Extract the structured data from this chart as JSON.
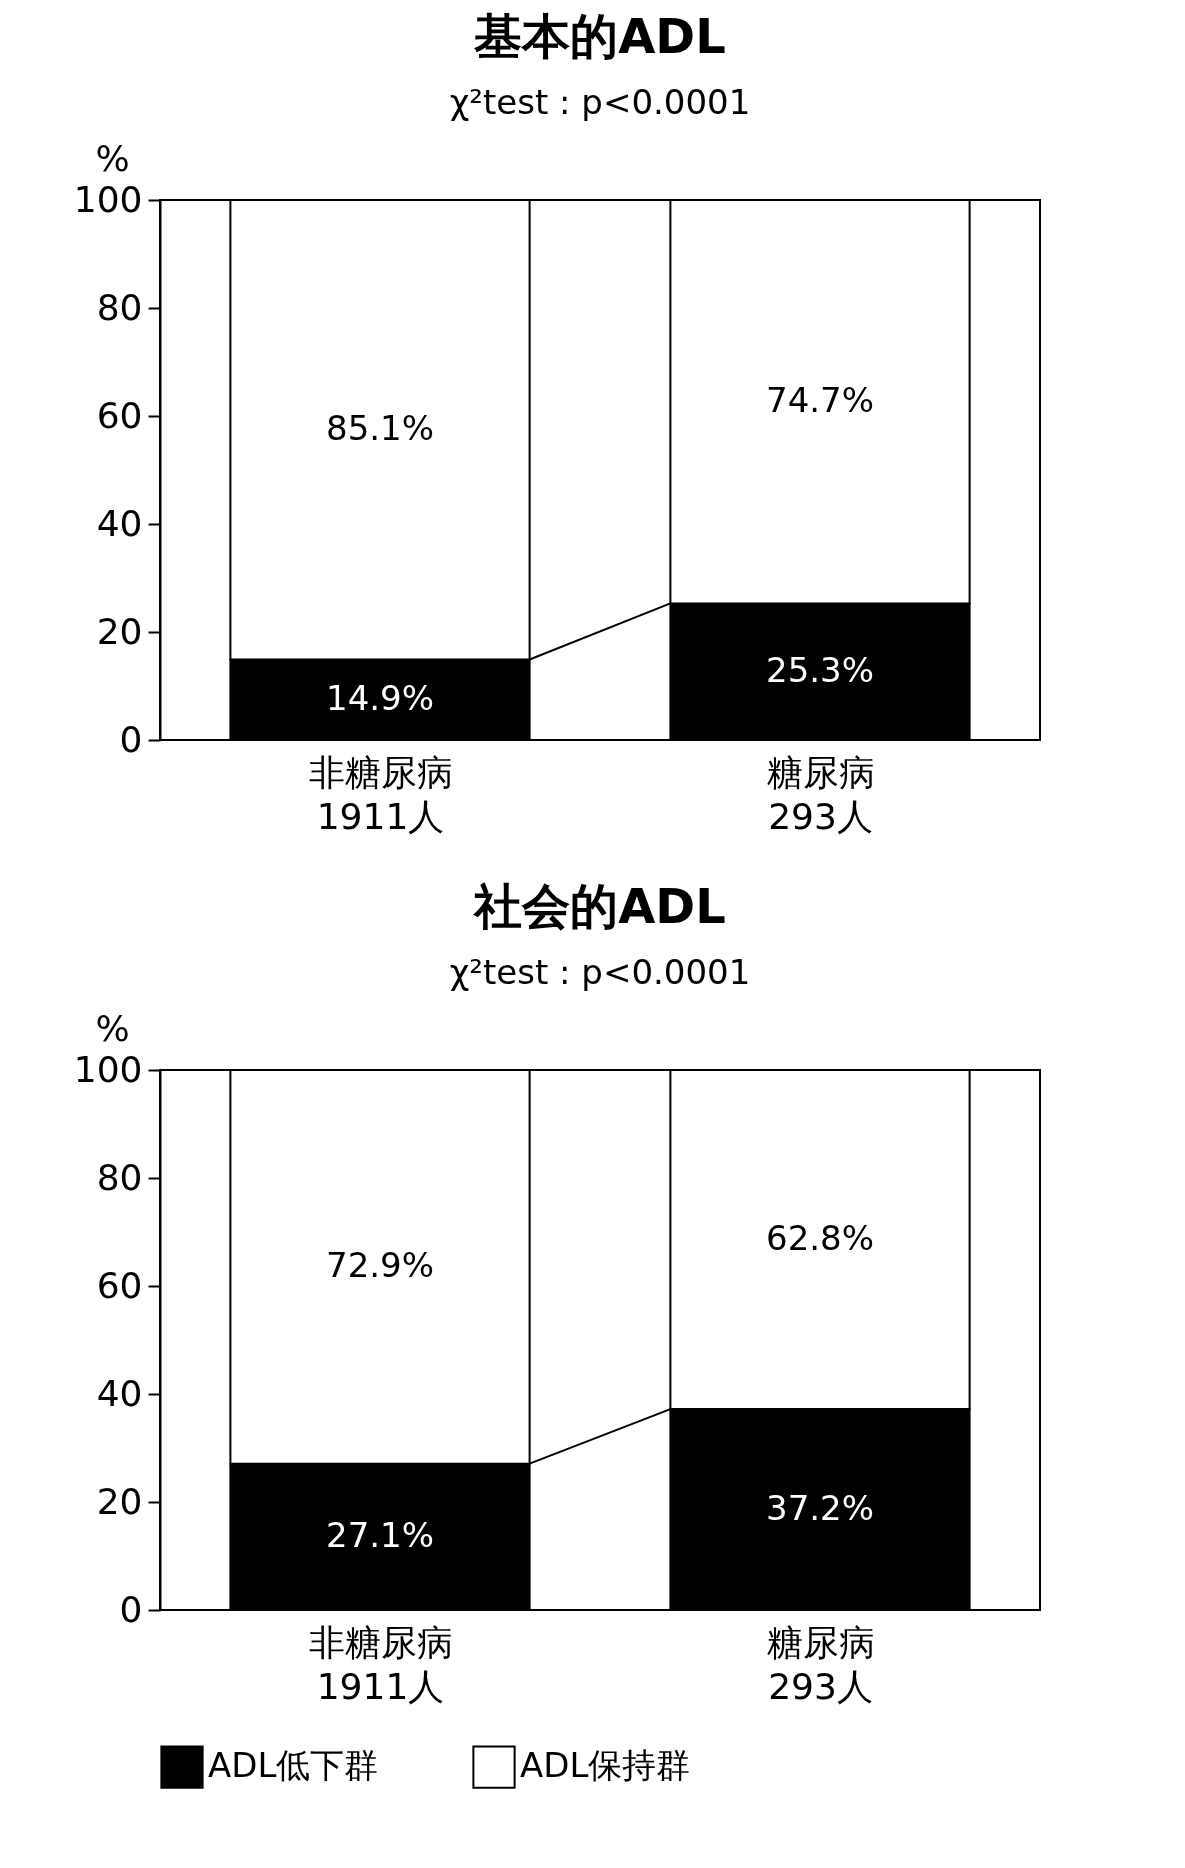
{
  "chart_data": [
    {
      "type": "bar",
      "stacked": true,
      "title": "基本的ADL",
      "subtitle": "χ²test : p<0.0001",
      "ylabel": "%",
      "categories": [
        "非糖尿病\n1911人",
        "糖尿病\n293人"
      ],
      "ylim": [
        0,
        100
      ],
      "yticks": [
        0,
        20,
        40,
        60,
        80,
        100
      ],
      "series": [
        {
          "color": "#000000",
          "values": [
            14.9,
            25.3
          ],
          "value_labels": [
            "14.9%",
            "25.3%"
          ]
        },
        {
          "color": "#ffffff",
          "values": [
            85.1,
            74.7
          ],
          "value_labels": [
            "85.1%",
            "74.7%"
          ]
        }
      ]
    },
    {
      "type": "bar",
      "stacked": true,
      "title": "社会的ADL",
      "subtitle": "χ²test : p<0.0001",
      "ylabel": "%",
      "categories": [
        "非糖尿病\n1911人",
        "糖尿病\n293人"
      ],
      "ylim": [
        0,
        100
      ],
      "yticks": [
        0,
        20,
        40,
        60,
        80,
        100
      ],
      "legend": "bottom",
      "series": [
        {
          "name": "ADL低下群",
          "color": "#000000",
          "values": [
            27.1,
            37.2
          ],
          "value_labels": [
            "27.1%",
            "37.2%"
          ]
        },
        {
          "name": "ADL保持群",
          "color": "#ffffff",
          "values": [
            72.9,
            62.8
          ],
          "value_labels": [
            "72.9%",
            "62.8%"
          ]
        }
      ]
    }
  ]
}
